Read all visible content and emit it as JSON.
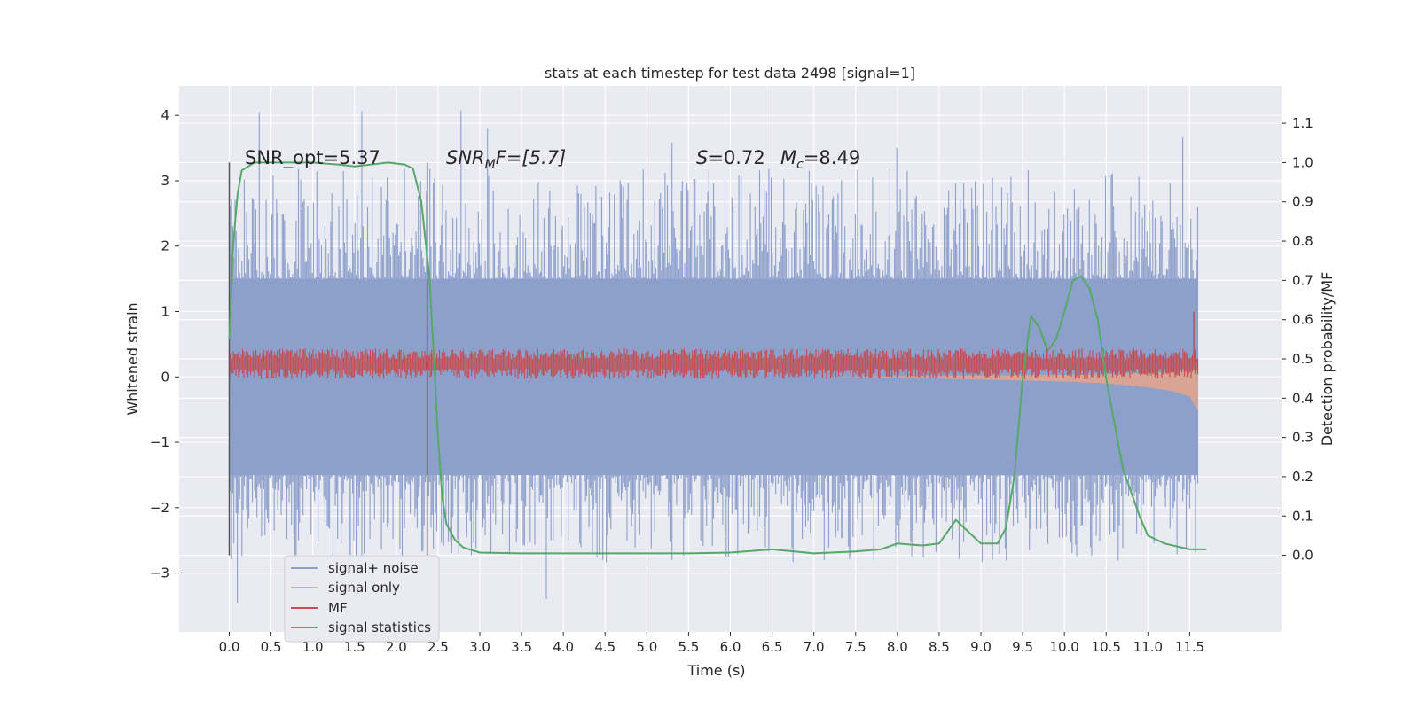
{
  "chart_data": {
    "type": "line",
    "title": "stats at each timestep for test data 2498 [signal=1]",
    "xlabel": "Time (s)",
    "ylabel": "Whitened strain",
    "y2label": "Detection probability/MF",
    "xlim": [
      -0.6,
      12.6
    ],
    "ylim": [
      -3.9,
      4.45
    ],
    "y2lim": [
      -0.195,
      1.195
    ],
    "grid": true,
    "x_ticks": [
      0.0,
      0.5,
      1.0,
      1.5,
      2.0,
      2.5,
      3.0,
      3.5,
      4.0,
      4.5,
      5.0,
      5.5,
      6.0,
      6.5,
      7.0,
      7.5,
      8.0,
      8.5,
      9.0,
      9.5,
      10.0,
      10.5,
      11.0,
      11.5
    ],
    "x_tick_labels": [
      "0.0",
      "0.5",
      "1.0",
      "1.5",
      "2.0",
      "2.5",
      "3.0",
      "3.5",
      "4.0",
      "4.5",
      "5.0",
      "5.5",
      "6.0",
      "6.5",
      "7.0",
      "7.5",
      "8.0",
      "8.5",
      "9.0",
      "9.5",
      "10.0",
      "10.5",
      "11.0",
      "11.5"
    ],
    "y_ticks": [
      -3,
      -2,
      -1,
      0,
      1,
      2,
      3,
      4
    ],
    "y_tick_labels": [
      "−3",
      "−2",
      "−1",
      "0",
      "1",
      "2",
      "3",
      "4"
    ],
    "y2_ticks": [
      0.0,
      0.1,
      0.2,
      0.3,
      0.4,
      0.5,
      0.6,
      0.7,
      0.8,
      0.9,
      1.0,
      1.1
    ],
    "y2_tick_labels": [
      "0.0",
      "0.1",
      "0.2",
      "0.3",
      "0.4",
      "0.5",
      "0.6",
      "0.7",
      "0.8",
      "0.9",
      "1.0",
      "1.1"
    ],
    "annotations": {
      "snr_opt": "SNR_opt=5.37",
      "snr_mf_main": "SNR",
      "snr_mf_sub": "M",
      "snr_mf_rest": "F=[5.7]",
      "s_main": "S",
      "s_rest": "=0.72",
      "mc_main": "M",
      "mc_sub": "c",
      "mc_rest": "=8.49"
    },
    "window_markers": [
      0.0,
      2.37
    ],
    "noise_envelope": {
      "x": [
        0.0,
        11.6
      ],
      "upper": 1.5,
      "lower": -1.5,
      "spike_max": 4.1,
      "spike_min": -3.55
    },
    "mf_band": {
      "x": [
        0.0,
        11.6
      ],
      "center": 0.2,
      "half_width": 0.18,
      "peak": [
        11.55,
        1.0
      ]
    },
    "signal_only": {
      "x": [
        7.0,
        8.0,
        9.0,
        10.0,
        10.5,
        11.0,
        11.3,
        11.5,
        11.6
      ],
      "upper": [
        0.0,
        0.01,
        0.02,
        0.03,
        0.04,
        0.06,
        0.08,
        0.1,
        0.15
      ],
      "lower": [
        0.0,
        -0.01,
        -0.04,
        -0.07,
        -0.1,
        -0.16,
        -0.22,
        -0.3,
        -0.52
      ]
    },
    "signal_statistics": {
      "x": [
        0.0,
        0.05,
        0.1,
        0.15,
        0.3,
        0.6,
        1.0,
        1.3,
        1.5,
        1.7,
        1.9,
        2.1,
        2.2,
        2.3,
        2.4,
        2.45,
        2.5,
        2.55,
        2.6,
        2.7,
        2.8,
        3.0,
        3.5,
        4.0,
        4.5,
        5.0,
        5.5,
        6.0,
        6.5,
        7.0,
        7.5,
        7.8,
        8.0,
        8.3,
        8.5,
        8.7,
        8.8,
        9.0,
        9.2,
        9.3,
        9.4,
        9.5,
        9.6,
        9.7,
        9.8,
        9.9,
        10.0,
        10.1,
        10.2,
        10.3,
        10.4,
        10.5,
        10.7,
        10.9,
        11.0,
        11.2,
        11.5,
        11.7
      ],
      "y": [
        0.55,
        0.8,
        0.92,
        0.98,
        1.0,
        1.0,
        1.0,
        0.995,
        0.99,
        0.995,
        1.0,
        0.995,
        0.985,
        0.9,
        0.7,
        0.5,
        0.3,
        0.15,
        0.08,
        0.04,
        0.02,
        0.007,
        0.005,
        0.005,
        0.005,
        0.005,
        0.005,
        0.007,
        0.015,
        0.005,
        0.01,
        0.015,
        0.03,
        0.025,
        0.03,
        0.09,
        0.07,
        0.03,
        0.03,
        0.07,
        0.2,
        0.45,
        0.61,
        0.58,
        0.52,
        0.55,
        0.62,
        0.7,
        0.71,
        0.68,
        0.6,
        0.45,
        0.22,
        0.1,
        0.05,
        0.03,
        0.015,
        0.015
      ]
    },
    "series": [
      {
        "name": "signal+ noise",
        "color": "#8da0cb"
      },
      {
        "name": "signal only",
        "color": "#e8a58c"
      },
      {
        "name": "MF",
        "color": "#c44e52"
      },
      {
        "name": "signal statistics",
        "color": "#55a868"
      }
    ],
    "legend_placement": "lower-left"
  }
}
